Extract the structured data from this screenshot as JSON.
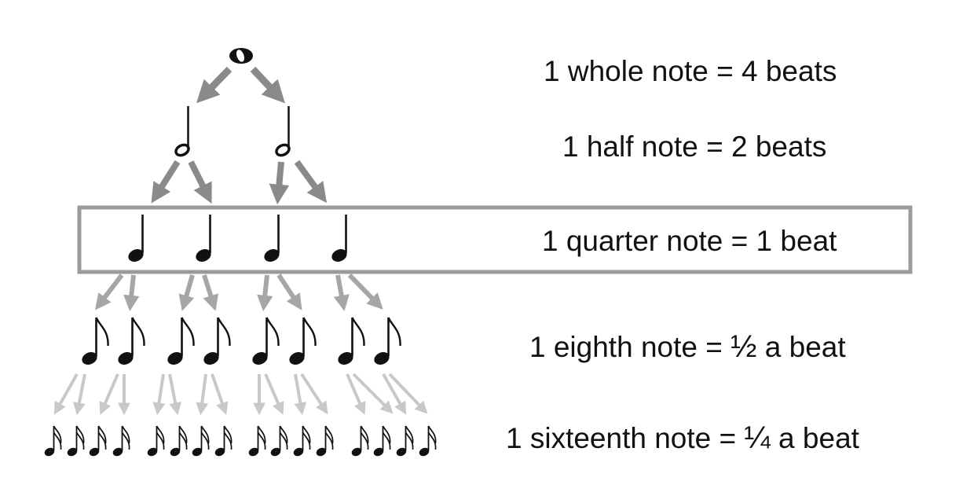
{
  "rows": [
    {
      "id": "whole",
      "label": "1 whole note = 4 beats",
      "count": 1
    },
    {
      "id": "half",
      "label": "1 half note = 2 beats",
      "count": 2
    },
    {
      "id": "quarter",
      "label": "1 quarter note = 1 beat",
      "count": 4,
      "highlighted": true
    },
    {
      "id": "eighth",
      "label_prefix": "1 eighth note = ",
      "label_fraction": "½",
      "label_suffix": " a beat",
      "count": 8
    },
    {
      "id": "sixteenth",
      "label_prefix": "1 sixteenth note = ",
      "label_fraction": "¼",
      "label_suffix": " a beat",
      "count": 16
    }
  ],
  "colors": {
    "arrow_dark": "#8a8a8a",
    "arrow_mid": "#a6a6a6",
    "arrow_light": "#c8c8c8",
    "highlight_box": "#9b9b9b",
    "note": "#111111"
  }
}
